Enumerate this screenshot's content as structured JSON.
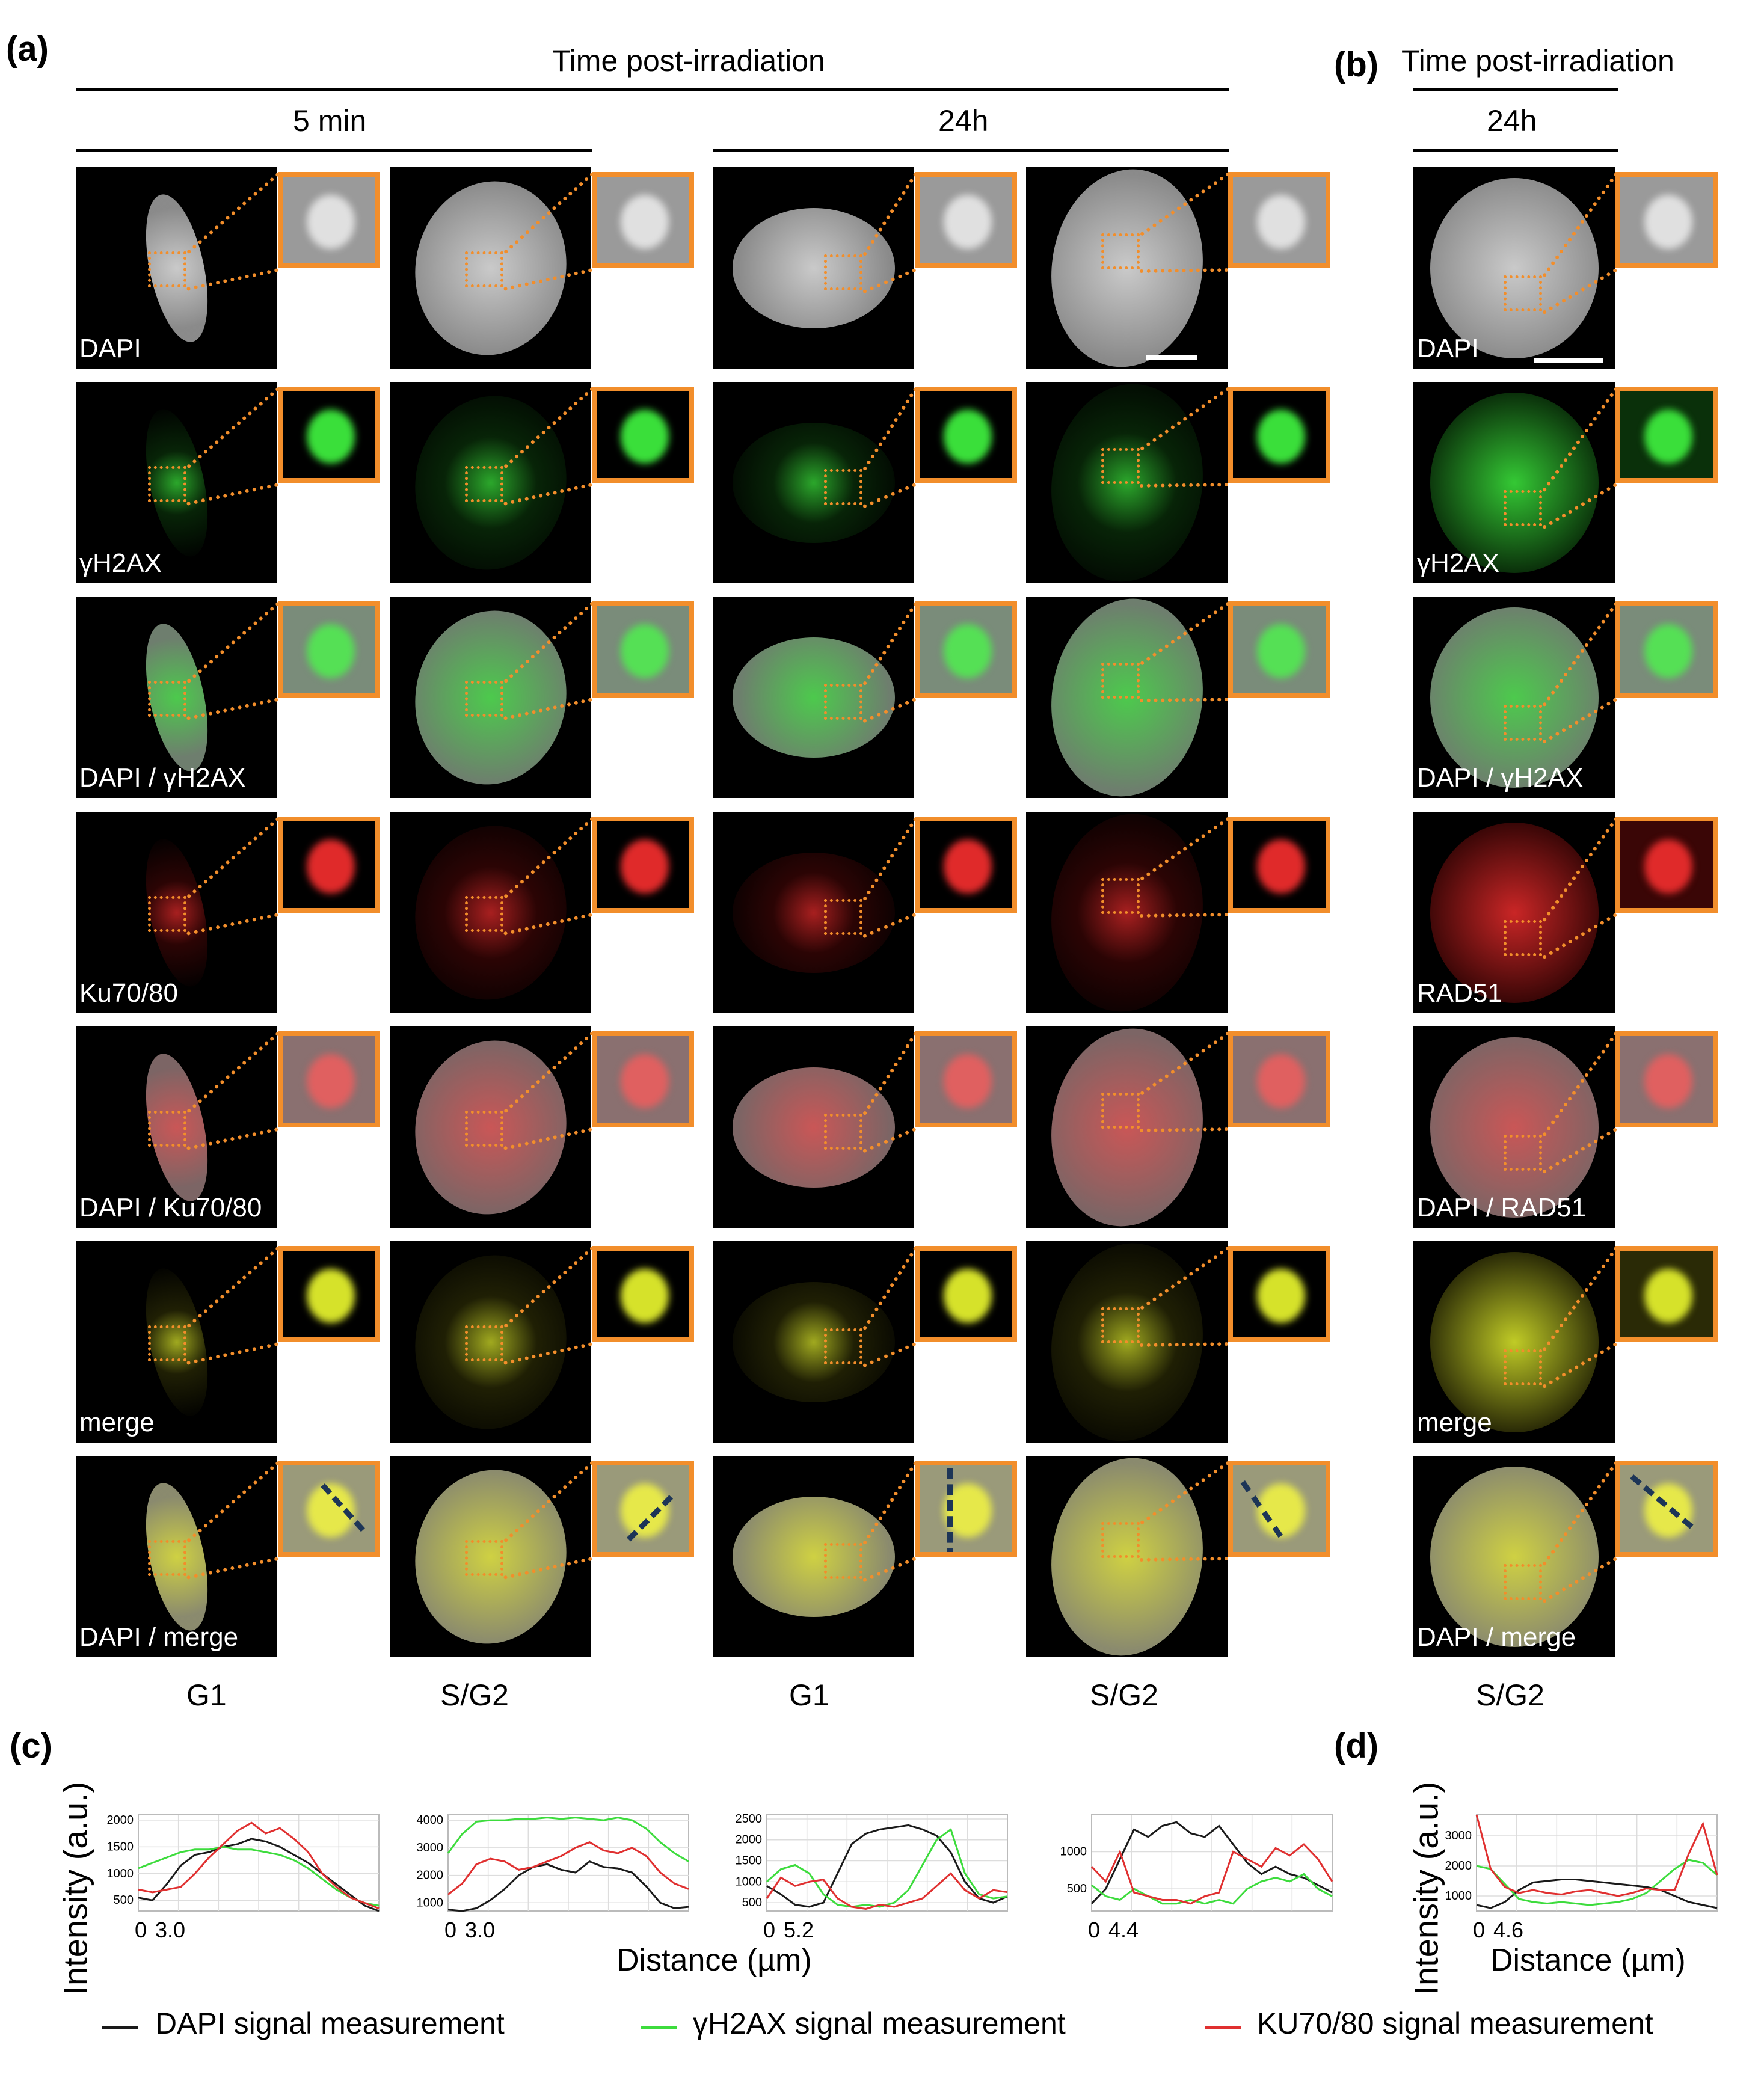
{
  "panel_labels": {
    "a": "(a)",
    "b": "(b)",
    "c": "(c)",
    "d": "(d)"
  },
  "headers": {
    "time_a": "Time post-irradiation",
    "time_b": "Time post-irradiation",
    "t5min": "5 min",
    "t24h_a": "24h",
    "t24h_b": "24h"
  },
  "row_labels": [
    "DAPI",
    "γH2AX",
    "DAPI / γH2AX",
    "Ku70/80",
    "DAPI / Ku70/80",
    "merge",
    "DAPI / merge"
  ],
  "row_labels_b": [
    "DAPI",
    "γH2AX",
    "DAPI / γH2AX",
    "RAD51",
    "DAPI / RAD51",
    "merge",
    "DAPI / merge"
  ],
  "column_labels": [
    "G1",
    "S/G2",
    "G1",
    "S/G2",
    "S/G2"
  ],
  "axis": {
    "ylabel": "Intensity (a.u.)",
    "xlabel": "Distance (µm)"
  },
  "legend": [
    {
      "label": "DAPI signal measurement",
      "color": "#1a1a1a"
    },
    {
      "label": "γH2AX signal measurement",
      "color": "#3ddc3d"
    },
    {
      "label": "KU70/80 signal measurement",
      "color": "#e03030"
    }
  ],
  "chart_data": [
    {
      "type": "line",
      "panel": "c",
      "x_ticks": [
        "0",
        "3.0"
      ],
      "y_ticks": [
        500,
        1000,
        1500,
        2000
      ],
      "ylim": [
        300,
        2100
      ],
      "grid": true,
      "series": [
        {
          "name": "DAPI signal measurement",
          "color": "#1a1a1a",
          "values": [
            550,
            500,
            800,
            1150,
            1350,
            1400,
            1500,
            1550,
            1650,
            1600,
            1500,
            1350,
            1200,
            1000,
            800,
            600,
            400,
            300
          ]
        },
        {
          "name": "γH2AX signal measurement",
          "color": "#3ddc3d",
          "values": [
            1100,
            1200,
            1300,
            1400,
            1450,
            1450,
            1500,
            1450,
            1450,
            1400,
            1350,
            1250,
            1100,
            900,
            700,
            550,
            450,
            400
          ]
        },
        {
          "name": "KU70/80 signal measurement",
          "color": "#e03030",
          "values": [
            700,
            650,
            700,
            750,
            1000,
            1300,
            1550,
            1800,
            1950,
            1750,
            1850,
            1650,
            1400,
            1000,
            750,
            550,
            450,
            350
          ]
        }
      ]
    },
    {
      "type": "line",
      "panel": "c",
      "x_ticks": [
        "0",
        "3.0"
      ],
      "y_ticks": [
        1000,
        2000,
        3000,
        4000
      ],
      "ylim": [
        700,
        4200
      ],
      "grid": true,
      "series": [
        {
          "name": "DAPI signal measurement",
          "color": "#1a1a1a",
          "values": [
            750,
            700,
            800,
            1100,
            1500,
            2000,
            2300,
            2400,
            2200,
            2100,
            2500,
            2300,
            2250,
            2100,
            1600,
            1000,
            800,
            850
          ]
        },
        {
          "name": "γH2AX signal measurement",
          "color": "#3ddc3d",
          "values": [
            2800,
            3500,
            3950,
            4000,
            4000,
            4050,
            4050,
            4100,
            4050,
            4100,
            4050,
            4000,
            4100,
            4000,
            3700,
            3200,
            2800,
            2500
          ]
        },
        {
          "name": "KU70/80 signal measurement",
          "color": "#e03030",
          "values": [
            1300,
            1700,
            2400,
            2600,
            2500,
            2200,
            2300,
            2500,
            2700,
            3000,
            3200,
            2900,
            2800,
            3000,
            2700,
            2100,
            1700,
            1500
          ]
        }
      ]
    },
    {
      "type": "line",
      "panel": "c",
      "x_ticks": [
        "0",
        "5.2"
      ],
      "y_ticks": [
        500,
        1000,
        1500,
        2000,
        2500
      ],
      "ylim": [
        300,
        2600
      ],
      "grid": true,
      "series": [
        {
          "name": "DAPI signal measurement",
          "color": "#1a1a1a",
          "values": [
            900,
            700,
            450,
            400,
            500,
            1200,
            1900,
            2150,
            2250,
            2300,
            2350,
            2250,
            2100,
            1700,
            1000,
            600,
            500,
            650
          ]
        },
        {
          "name": "γH2AX signal measurement",
          "color": "#3ddc3d",
          "values": [
            1000,
            1300,
            1400,
            1200,
            700,
            450,
            400,
            450,
            400,
            500,
            800,
            1400,
            2000,
            2250,
            1200,
            700,
            600,
            650
          ]
        },
        {
          "name": "KU70/80 signal measurement",
          "color": "#e03030",
          "values": [
            600,
            1100,
            900,
            1000,
            1050,
            600,
            400,
            350,
            450,
            400,
            500,
            600,
            900,
            1200,
            800,
            600,
            800,
            750
          ]
        }
      ]
    },
    {
      "type": "line",
      "panel": "c",
      "x_ticks": [
        "0",
        "4.4"
      ],
      "y_ticks": [
        500,
        1000
      ],
      "ylim": [
        200,
        1500
      ],
      "grid": true,
      "series": [
        {
          "name": "DAPI signal measurement",
          "color": "#1a1a1a",
          "values": [
            300,
            500,
            900,
            1300,
            1200,
            1350,
            1400,
            1250,
            1200,
            1350,
            1100,
            850,
            700,
            800,
            700,
            650,
            550,
            450
          ]
        },
        {
          "name": "γH2AX signal measurement",
          "color": "#3ddc3d",
          "values": [
            550,
            400,
            350,
            500,
            400,
            300,
            300,
            350,
            300,
            350,
            300,
            500,
            600,
            650,
            600,
            700,
            500,
            400
          ]
        },
        {
          "name": "KU70/80 signal measurement",
          "color": "#e03030",
          "values": [
            800,
            600,
            1000,
            450,
            400,
            350,
            350,
            300,
            400,
            450,
            1000,
            900,
            800,
            1050,
            950,
            1100,
            900,
            600
          ]
        }
      ]
    },
    {
      "type": "line",
      "panel": "d",
      "x_ticks": [
        "0",
        "4.6"
      ],
      "y_ticks": [
        1000,
        2000,
        3000
      ],
      "ylim": [
        500,
        3700
      ],
      "grid": true,
      "series": [
        {
          "name": "DAPI signal measurement",
          "color": "#1a1a1a",
          "values": [
            700,
            600,
            800,
            1200,
            1450,
            1500,
            1550,
            1550,
            1500,
            1450,
            1400,
            1350,
            1300,
            1200,
            1000,
            800,
            700,
            600
          ]
        },
        {
          "name": "γH2AX signal measurement",
          "color": "#3ddc3d",
          "values": [
            2000,
            1900,
            1400,
            900,
            800,
            750,
            800,
            750,
            700,
            750,
            800,
            900,
            1100,
            1500,
            1900,
            2200,
            2100,
            1700
          ]
        },
        {
          "name": "KU70/80 signal measurement",
          "color": "#e03030",
          "values": [
            3700,
            1900,
            1300,
            1100,
            1200,
            1100,
            1050,
            1150,
            1200,
            1100,
            1000,
            1100,
            1250,
            1200,
            1200,
            2400,
            3400,
            1700
          ]
        }
      ]
    }
  ]
}
